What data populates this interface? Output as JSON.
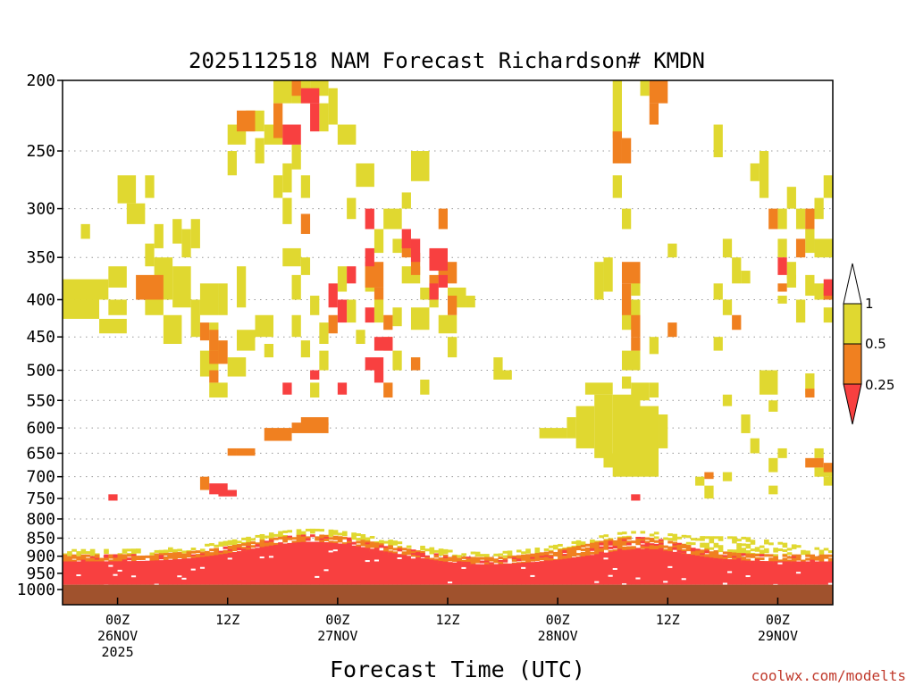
{
  "chart_data": {
    "type": "heatmap",
    "title": "2025112518 NAM Forecast Richardson# KMDN",
    "xlabel": "Forecast Time (UTC)",
    "ylabel": "Pressure (hPa)",
    "credit": "coolwx.com/modelts",
    "x_range_hours": [
      0,
      84
    ],
    "x_ticks": [
      {
        "hour": 6,
        "line1": "00Z",
        "line2": "26NOV",
        "line3": "2025"
      },
      {
        "hour": 18,
        "line1": "12Z",
        "line2": "",
        "line3": ""
      },
      {
        "hour": 30,
        "line1": "00Z",
        "line2": "27NOV",
        "line3": ""
      },
      {
        "hour": 42,
        "line1": "12Z",
        "line2": "",
        "line3": ""
      },
      {
        "hour": 54,
        "line1": "00Z",
        "line2": "28NOV",
        "line3": ""
      },
      {
        "hour": 66,
        "line1": "12Z",
        "line2": "",
        "line3": ""
      },
      {
        "hour": 78,
        "line1": "00Z",
        "line2": "29NOV",
        "line3": ""
      }
    ],
    "y_range": [
      1020,
      200
    ],
    "y_ticks": [
      200,
      250,
      300,
      350,
      400,
      450,
      500,
      550,
      600,
      650,
      700,
      750,
      800,
      850,
      900,
      950,
      1000
    ],
    "y_tick_labels": [
      "200",
      "250",
      "300",
      "350",
      "400",
      "450",
      "500",
      "550",
      "600",
      "650",
      "700",
      "750",
      "800",
      "850",
      "900",
      "950",
      "1000"
    ],
    "gridlines": "dotted at labeled pressure levels",
    "colorbar": {
      "placement": "right",
      "bins": [
        {
          "label": "< 0.25",
          "color": "#f84040"
        },
        {
          "label": "0.25 to 0.5",
          "color": "#f08020"
        },
        {
          "label": "0.5 to 1",
          "color": "#e0d830"
        },
        {
          "label": "> 1",
          "color": "#ffffff"
        }
      ],
      "tick_labels": [
        "1",
        "0.5",
        "0.25"
      ]
    },
    "ground_color": "#a0522d",
    "cells": [
      [
        2,
        315,
        3,
        330,
        "Y"
      ],
      [
        0,
        375,
        5,
        400,
        "Y"
      ],
      [
        0,
        400,
        4,
        425,
        "Y"
      ],
      [
        5,
        400,
        7,
        420,
        "Y"
      ],
      [
        4,
        425,
        7,
        445,
        "Y"
      ],
      [
        5,
        360,
        7,
        385,
        "Y"
      ],
      [
        6,
        270,
        8,
        295,
        "Y"
      ],
      [
        7,
        295,
        9,
        315,
        "Y"
      ],
      [
        9,
        270,
        10,
        290,
        "Y"
      ],
      [
        9,
        375,
        11,
        400,
        "Y"
      ],
      [
        9,
        400,
        11,
        420,
        "Y"
      ],
      [
        9,
        335,
        10,
        360,
        "Y"
      ],
      [
        10,
        315,
        11,
        340,
        "Y"
      ],
      [
        10,
        350,
        12,
        400,
        "Y"
      ],
      [
        12,
        310,
        13,
        335,
        "Y"
      ],
      [
        13,
        320,
        14,
        350,
        "Y"
      ],
      [
        12,
        360,
        14,
        410,
        "Y"
      ],
      [
        11,
        420,
        13,
        460,
        "Y"
      ],
      [
        14,
        400,
        15,
        450,
        "Y"
      ],
      [
        15,
        380,
        17,
        420,
        "Y"
      ],
      [
        14,
        310,
        15,
        340,
        "Y"
      ],
      [
        17,
        380,
        18,
        420,
        "Y"
      ],
      [
        16,
        430,
        17,
        470,
        "Y"
      ],
      [
        15,
        470,
        17,
        510,
        "Y"
      ],
      [
        16,
        520,
        18,
        545,
        "Y"
      ],
      [
        18,
        480,
        20,
        510,
        "Y"
      ],
      [
        19,
        440,
        21,
        470,
        "Y"
      ],
      [
        21,
        420,
        23,
        450,
        "Y"
      ],
      [
        22,
        460,
        23,
        480,
        "Y"
      ],
      [
        19,
        360,
        20,
        410,
        "Y"
      ],
      [
        18,
        230,
        20,
        245,
        "Y"
      ],
      [
        20,
        220,
        22,
        235,
        "Y"
      ],
      [
        18,
        250,
        19,
        270,
        "Y"
      ],
      [
        21,
        240,
        22,
        260,
        "Y"
      ],
      [
        22,
        230,
        24,
        245,
        "Y"
      ],
      [
        23,
        200,
        25,
        215,
        "Y"
      ],
      [
        25,
        200,
        27,
        215,
        "Y"
      ],
      [
        27,
        200,
        29,
        210,
        "Y"
      ],
      [
        29,
        205,
        30,
        230,
        "Y"
      ],
      [
        28,
        215,
        29,
        235,
        "Y"
      ],
      [
        23,
        270,
        24,
        290,
        "Y"
      ],
      [
        24,
        260,
        25,
        285,
        "Y"
      ],
      [
        25,
        245,
        26,
        265,
        "Y"
      ],
      [
        24,
        290,
        25,
        315,
        "Y"
      ],
      [
        26,
        270,
        27,
        290,
        "Y"
      ],
      [
        24,
        340,
        26,
        360,
        "Y"
      ],
      [
        25,
        370,
        26,
        400,
        "Y"
      ],
      [
        26,
        350,
        27,
        370,
        "Y"
      ],
      [
        25,
        420,
        26,
        450,
        "Y"
      ],
      [
        26,
        455,
        27,
        480,
        "Y"
      ],
      [
        27,
        395,
        28,
        420,
        "Y"
      ],
      [
        28,
        430,
        29,
        460,
        "Y"
      ],
      [
        28,
        470,
        29,
        500,
        "Y"
      ],
      [
        27,
        520,
        28,
        545,
        "Y"
      ],
      [
        30,
        230,
        32,
        245,
        "Y"
      ],
      [
        31,
        290,
        32,
        310,
        "Y"
      ],
      [
        32,
        260,
        34,
        280,
        "Y"
      ],
      [
        30,
        360,
        31,
        390,
        "Y"
      ],
      [
        31,
        400,
        32,
        430,
        "Y"
      ],
      [
        32,
        440,
        33,
        460,
        "Y"
      ],
      [
        33,
        360,
        34,
        390,
        "Y"
      ],
      [
        34,
        400,
        35,
        430,
        "Y"
      ],
      [
        34,
        320,
        35,
        345,
        "Y"
      ],
      [
        35,
        300,
        37,
        320,
        "Y"
      ],
      [
        36,
        330,
        37,
        345,
        "Y"
      ],
      [
        37,
        360,
        39,
        380,
        "Y"
      ],
      [
        36,
        410,
        37,
        435,
        "Y"
      ],
      [
        38,
        410,
        40,
        440,
        "Y"
      ],
      [
        39,
        385,
        40,
        400,
        "Y"
      ],
      [
        36,
        470,
        37,
        500,
        "Y"
      ],
      [
        38,
        480,
        39,
        500,
        "Y"
      ],
      [
        39,
        515,
        40,
        540,
        "Y"
      ],
      [
        40,
        395,
        41,
        410,
        "Y"
      ],
      [
        41,
        420,
        43,
        445,
        "Y"
      ],
      [
        42,
        450,
        43,
        480,
        "Y"
      ],
      [
        41,
        355,
        42,
        380,
        "Y"
      ],
      [
        42,
        385,
        44,
        410,
        "Y"
      ],
      [
        44,
        395,
        45,
        410,
        "Y"
      ],
      [
        38,
        250,
        40,
        275,
        "Y"
      ],
      [
        37,
        285,
        38,
        300,
        "Y"
      ],
      [
        47,
        480,
        48,
        500,
        "Y"
      ],
      [
        47,
        500,
        49,
        515,
        "Y"
      ],
      [
        52,
        600,
        55,
        620,
        "Y"
      ],
      [
        55,
        580,
        56,
        620,
        "Y"
      ],
      [
        56,
        560,
        58,
        640,
        "Y"
      ],
      [
        58,
        540,
        60,
        660,
        "Y"
      ],
      [
        57,
        520,
        60,
        540,
        "Y"
      ],
      [
        60,
        540,
        63,
        700,
        "Y"
      ],
      [
        63,
        560,
        65,
        700,
        "Y"
      ],
      [
        65,
        575,
        66,
        640,
        "Y"
      ],
      [
        59,
        650,
        61,
        680,
        "Y"
      ],
      [
        58,
        355,
        59,
        400,
        "Y"
      ],
      [
        59,
        350,
        60,
        390,
        "Y"
      ],
      [
        61,
        400,
        63,
        440,
        "Y"
      ],
      [
        61,
        470,
        63,
        500,
        "Y"
      ],
      [
        61,
        510,
        62,
        530,
        "Y"
      ],
      [
        62,
        520,
        64,
        550,
        "Y"
      ],
      [
        64,
        520,
        65,
        545,
        "Y"
      ],
      [
        64,
        450,
        65,
        475,
        "Y"
      ],
      [
        62,
        370,
        63,
        395,
        "Y"
      ],
      [
        60,
        200,
        61,
        240,
        "Y"
      ],
      [
        60,
        270,
        61,
        290,
        "Y"
      ],
      [
        63,
        200,
        64,
        210,
        "Y"
      ],
      [
        61,
        300,
        62,
        320,
        "Y"
      ],
      [
        66,
        335,
        67,
        350,
        "Y"
      ],
      [
        71,
        230,
        72,
        255,
        "Y"
      ],
      [
        71,
        380,
        72,
        400,
        "Y"
      ],
      [
        71,
        450,
        72,
        470,
        "Y"
      ],
      [
        72,
        540,
        73,
        560,
        "Y"
      ],
      [
        72,
        400,
        73,
        420,
        "Y"
      ],
      [
        72,
        330,
        73,
        350,
        "Y"
      ],
      [
        73,
        350,
        74,
        380,
        "Y"
      ],
      [
        74,
        365,
        75,
        380,
        "Y"
      ],
      [
        75,
        260,
        76,
        275,
        "Y"
      ],
      [
        76,
        250,
        77,
        290,
        "Y"
      ],
      [
        74,
        575,
        75,
        610,
        "Y"
      ],
      [
        75,
        620,
        76,
        650,
        "Y"
      ],
      [
        76,
        500,
        78,
        540,
        "Y"
      ],
      [
        77,
        550,
        78,
        570,
        "Y"
      ],
      [
        78,
        300,
        79,
        320,
        "Y"
      ],
      [
        78,
        330,
        79,
        350,
        "Y"
      ],
      [
        78,
        395,
        79,
        405,
        "Y"
      ],
      [
        79,
        355,
        80,
        375,
        "Y"
      ],
      [
        79,
        370,
        80,
        385,
        "Y"
      ],
      [
        80,
        400,
        81,
        430,
        "Y"
      ],
      [
        79,
        280,
        80,
        300,
        "Y"
      ],
      [
        80,
        300,
        81,
        320,
        "Y"
      ],
      [
        81,
        320,
        82,
        345,
        "Y"
      ],
      [
        81,
        370,
        82,
        395,
        "Y"
      ],
      [
        82,
        290,
        83,
        310,
        "Y"
      ],
      [
        83,
        270,
        84,
        290,
        "Y"
      ],
      [
        82,
        330,
        84,
        350,
        "Y"
      ],
      [
        82,
        380,
        84,
        400,
        "Y"
      ],
      [
        83,
        410,
        84,
        430,
        "Y"
      ],
      [
        81,
        505,
        82,
        540,
        "Y"
      ],
      [
        82,
        680,
        84,
        700,
        "Y"
      ],
      [
        82,
        640,
        83,
        660,
        "Y"
      ],
      [
        83,
        700,
        84,
        720,
        "Y"
      ],
      [
        77,
        660,
        78,
        690,
        "Y"
      ],
      [
        78,
        640,
        79,
        660,
        "Y"
      ],
      [
        72,
        690,
        73,
        710,
        "Y"
      ],
      [
        77,
        720,
        78,
        740,
        "Y"
      ],
      [
        69,
        700,
        70,
        720,
        "Y"
      ],
      [
        70,
        720,
        71,
        750,
        "Y"
      ],
      [
        8,
        370,
        11,
        400,
        "O"
      ],
      [
        15,
        430,
        16,
        455,
        "O"
      ],
      [
        16,
        440,
        17,
        470,
        "O"
      ],
      [
        16,
        470,
        17,
        490,
        "O"
      ],
      [
        17,
        455,
        18,
        490,
        "O"
      ],
      [
        15,
        700,
        16,
        730,
        "O"
      ],
      [
        18,
        640,
        19,
        655,
        "O"
      ],
      [
        19,
        640,
        21,
        655,
        "O"
      ],
      [
        16,
        500,
        17,
        520,
        "O"
      ],
      [
        19,
        220,
        21,
        235,
        "O"
      ],
      [
        23,
        215,
        24,
        240,
        "O"
      ],
      [
        25,
        200,
        26,
        210,
        "O"
      ],
      [
        22,
        600,
        25,
        625,
        "O"
      ],
      [
        25,
        590,
        29,
        610,
        "O"
      ],
      [
        26,
        580,
        29,
        595,
        "O"
      ],
      [
        29,
        420,
        30,
        445,
        "O"
      ],
      [
        26,
        305,
        27,
        325,
        "O"
      ],
      [
        33,
        355,
        35,
        385,
        "O"
      ],
      [
        34,
        385,
        35,
        400,
        "O"
      ],
      [
        35,
        420,
        36,
        440,
        "O"
      ],
      [
        35,
        450,
        36,
        470,
        "O"
      ],
      [
        38,
        480,
        39,
        500,
        "O"
      ],
      [
        35,
        520,
        36,
        545,
        "O"
      ],
      [
        37,
        330,
        38,
        350,
        "O"
      ],
      [
        38,
        345,
        39,
        370,
        "O"
      ],
      [
        40,
        370,
        41,
        395,
        "O"
      ],
      [
        41,
        355,
        43,
        380,
        "O"
      ],
      [
        42,
        395,
        43,
        420,
        "O"
      ],
      [
        41,
        300,
        42,
        320,
        "O"
      ],
      [
        61,
        355,
        63,
        380,
        "O"
      ],
      [
        61,
        380,
        62,
        420,
        "O"
      ],
      [
        62,
        420,
        63,
        450,
        "O"
      ],
      [
        62,
        450,
        63,
        470,
        "O"
      ],
      [
        60,
        235,
        61,
        260,
        "O"
      ],
      [
        61,
        240,
        62,
        260,
        "O"
      ],
      [
        64,
        215,
        65,
        230,
        "O"
      ],
      [
        66,
        430,
        67,
        450,
        "O"
      ],
      [
        70,
        690,
        71,
        705,
        "O"
      ],
      [
        77,
        300,
        78,
        320,
        "O"
      ],
      [
        78,
        380,
        79,
        390,
        "O"
      ],
      [
        80,
        330,
        81,
        350,
        "O"
      ],
      [
        81,
        300,
        82,
        320,
        "O"
      ],
      [
        83,
        385,
        84,
        400,
        "O"
      ],
      [
        81,
        660,
        83,
        680,
        "O"
      ],
      [
        83,
        670,
        84,
        690,
        "O"
      ],
      [
        73,
        420,
        74,
        440,
        "O"
      ],
      [
        81,
        530,
        82,
        545,
        "O"
      ],
      [
        64,
        200,
        66,
        215,
        "O"
      ],
      [
        26,
        205,
        28,
        215,
        "R"
      ],
      [
        24,
        230,
        26,
        245,
        "R"
      ],
      [
        27,
        215,
        28,
        235,
        "R"
      ],
      [
        29,
        380,
        30,
        410,
        "R"
      ],
      [
        30,
        400,
        31,
        430,
        "R"
      ],
      [
        31,
        360,
        32,
        380,
        "R"
      ],
      [
        33,
        300,
        34,
        320,
        "R"
      ],
      [
        33,
        340,
        34,
        360,
        "R"
      ],
      [
        33,
        410,
        34,
        430,
        "R"
      ],
      [
        34,
        450,
        36,
        470,
        "R"
      ],
      [
        33,
        480,
        35,
        500,
        "R"
      ],
      [
        34,
        500,
        35,
        520,
        "R"
      ],
      [
        37,
        320,
        38,
        340,
        "R"
      ],
      [
        38,
        330,
        39,
        355,
        "R"
      ],
      [
        40,
        340,
        42,
        365,
        "R"
      ],
      [
        41,
        370,
        42,
        385,
        "R"
      ],
      [
        40,
        380,
        41,
        400,
        "R"
      ],
      [
        27,
        500,
        28,
        515,
        "R"
      ],
      [
        24,
        520,
        25,
        540,
        "R"
      ],
      [
        30,
        520,
        31,
        540,
        "R"
      ],
      [
        16,
        715,
        18,
        740,
        "R"
      ],
      [
        17,
        730,
        19,
        745,
        "R"
      ],
      [
        5,
        740,
        6,
        755,
        "R"
      ],
      [
        62,
        740,
        63,
        755,
        "R"
      ],
      [
        78,
        350,
        79,
        370,
        "R"
      ],
      [
        83,
        375,
        84,
        395,
        "R"
      ]
    ]
  }
}
